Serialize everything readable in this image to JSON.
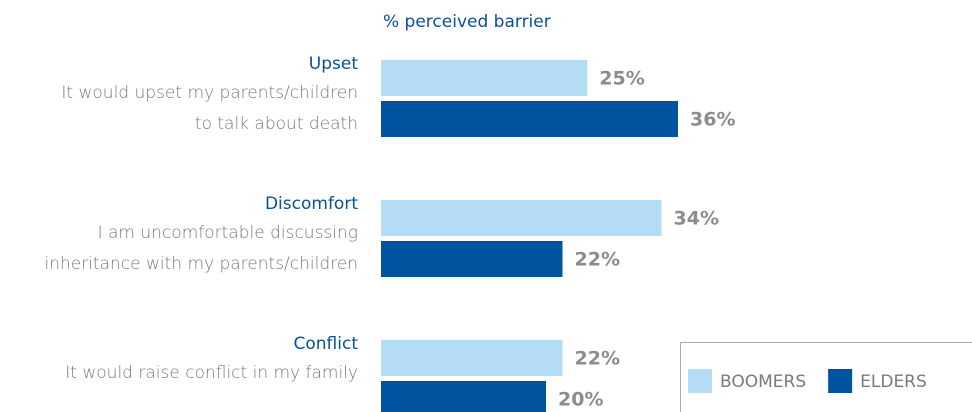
{
  "chart_data": {
    "type": "hbar",
    "axis_label": "% perceived barrier",
    "categories": [
      "Upset",
      "Discomfort",
      "Conflict"
    ],
    "category_descriptions": [
      [
        "It would upset my parents/children",
        "to talk about death"
      ],
      [
        "I am uncomfortable discussing",
        "inheritance with my parents/children"
      ],
      [
        "It would raise conflict in my family"
      ]
    ],
    "series": [
      {
        "name": "BOOMERS",
        "color": "#b5dcf5",
        "values": [
          25,
          34,
          22
        ],
        "value_labels": [
          "25%",
          "34%",
          "22%"
        ]
      },
      {
        "name": "ELDERS",
        "color": "#00539e",
        "values": [
          36,
          22,
          20
        ],
        "value_labels": [
          "36%",
          "22%",
          "20%"
        ]
      }
    ],
    "legend": "bottom-right"
  }
}
